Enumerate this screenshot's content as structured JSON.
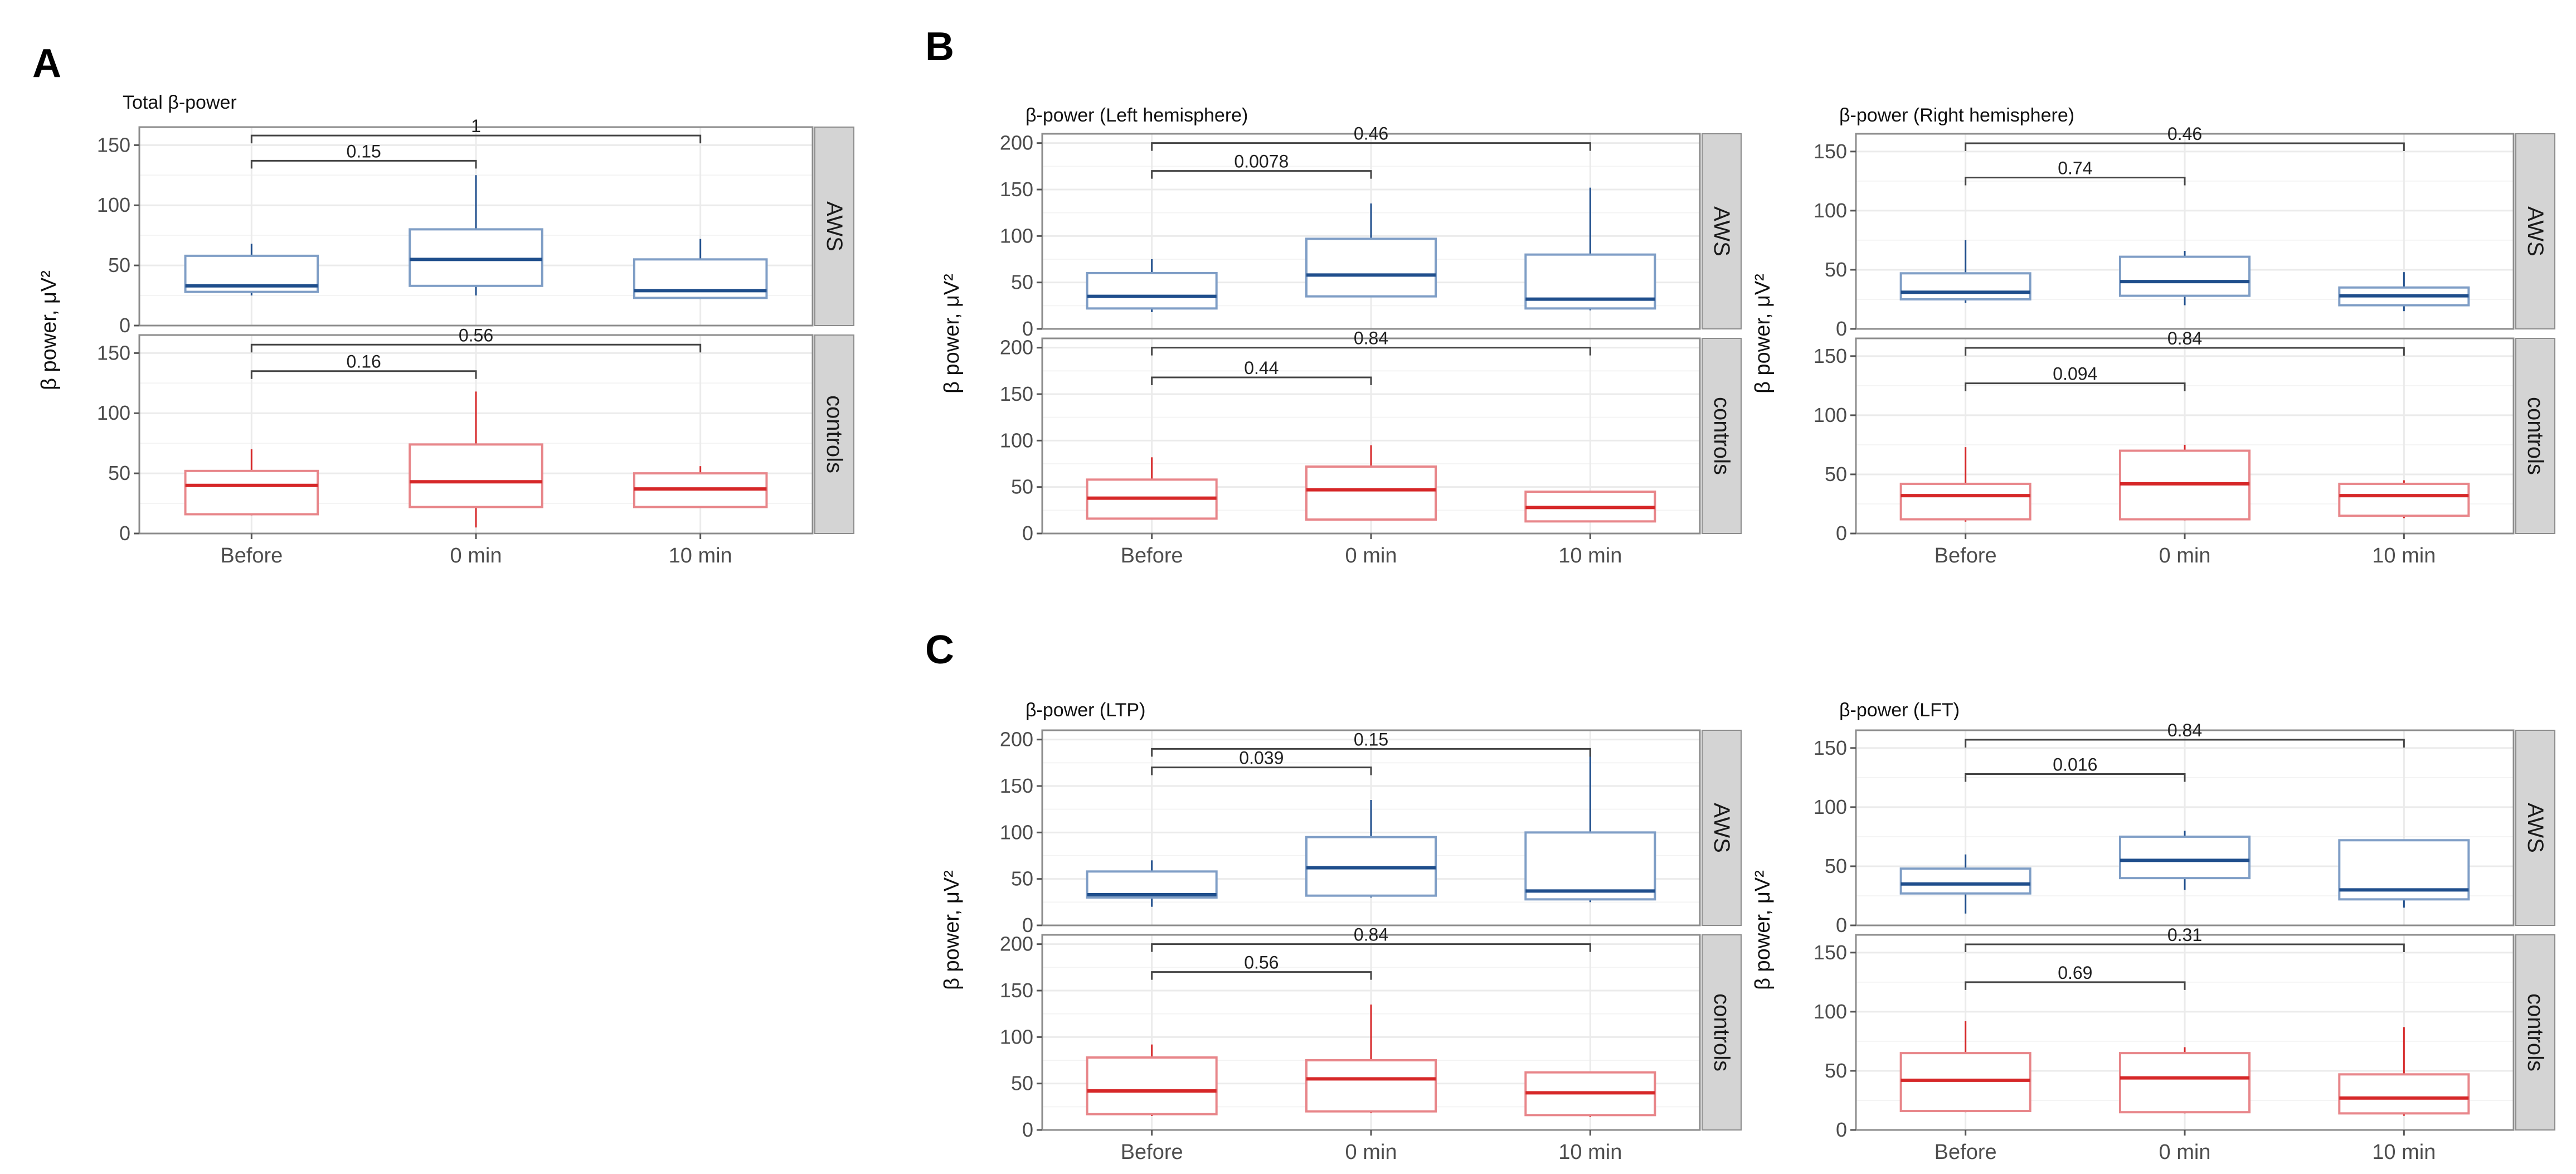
{
  "colors": {
    "aws": "#1f4e8c",
    "aws_light": "#7f9ec6",
    "controls": "#d62728",
    "controls_light": "#e8868a",
    "grid": "#ebebeb",
    "strip": "#d4d4d4",
    "bracket": "#444444"
  },
  "panels": [
    {
      "letter": "A",
      "title": "Total β-power",
      "ylabel": "β power, μV²"
    },
    {
      "letter": "B",
      "title": "β-power (Left hemisphere)",
      "ylabel": "β power, μV²"
    },
    {
      "letter": "",
      "title": "β-power (Right hemisphere)",
      "ylabel": "β power, μV²"
    },
    {
      "letter": "C",
      "title": "β-power (LTP)",
      "ylabel": "β power, μV²"
    },
    {
      "letter": "",
      "title": "β-power (LFT)",
      "ylabel": "β power, μV²"
    }
  ],
  "chart_data": [
    {
      "type": "box",
      "title": "Total β-power",
      "ylabel": "β power, μV²",
      "categories": [
        "Before",
        "0 min",
        "10 min"
      ],
      "ylim": [
        0,
        165
      ],
      "yticks": [
        0,
        50,
        100,
        150
      ],
      "facets": [
        {
          "name": "AWS",
          "group": "aws",
          "boxes": [
            {
              "min": 25,
              "q1": 28,
              "median": 33,
              "q3": 58,
              "max": 68
            },
            {
              "min": 25,
              "q1": 33,
              "median": 55,
              "q3": 80,
              "max": 125
            },
            {
              "min": 22,
              "q1": 23,
              "median": 29,
              "q3": 55,
              "max": 72
            }
          ],
          "brackets": [
            {
              "from": 0,
              "to": 1,
              "y": 137,
              "label": "0.15"
            },
            {
              "from": 0,
              "to": 2,
              "y": 158,
              "label": "1"
            }
          ]
        },
        {
          "name": "controls",
          "group": "controls",
          "boxes": [
            {
              "min": 15,
              "q1": 16,
              "median": 40,
              "q3": 52,
              "max": 70
            },
            {
              "min": 5,
              "q1": 22,
              "median": 43,
              "q3": 74,
              "max": 118
            },
            {
              "min": 22,
              "q1": 22,
              "median": 37,
              "q3": 50,
              "max": 56
            }
          ],
          "brackets": [
            {
              "from": 0,
              "to": 1,
              "y": 135,
              "label": "0.16"
            },
            {
              "from": 0,
              "to": 2,
              "y": 157,
              "label": "0.56"
            }
          ]
        }
      ]
    },
    {
      "type": "box",
      "title": "β-power (Left hemisphere)",
      "ylabel": "β power, μV²",
      "categories": [
        "Before",
        "0 min",
        "10 min"
      ],
      "ylim": [
        0,
        210
      ],
      "yticks": [
        0,
        50,
        100,
        150,
        200
      ],
      "facets": [
        {
          "name": "AWS",
          "group": "aws",
          "boxes": [
            {
              "min": 18,
              "q1": 22,
              "median": 35,
              "q3": 60,
              "max": 75
            },
            {
              "min": 35,
              "q1": 35,
              "median": 58,
              "q3": 97,
              "max": 135
            },
            {
              "min": 20,
              "q1": 22,
              "median": 32,
              "q3": 80,
              "max": 152
            }
          ],
          "brackets": [
            {
              "from": 0,
              "to": 1,
              "y": 170,
              "label": "0.0078"
            },
            {
              "from": 0,
              "to": 2,
              "y": 200,
              "label": "0.46"
            }
          ]
        },
        {
          "name": "controls",
          "group": "controls",
          "boxes": [
            {
              "min": 15,
              "q1": 16,
              "median": 38,
              "q3": 58,
              "max": 82
            },
            {
              "min": 14,
              "q1": 15,
              "median": 47,
              "q3": 72,
              "max": 95
            },
            {
              "min": 12,
              "q1": 13,
              "median": 28,
              "q3": 45,
              "max": 45
            }
          ],
          "brackets": [
            {
              "from": 0,
              "to": 1,
              "y": 168,
              "label": "0.44"
            },
            {
              "from": 0,
              "to": 2,
              "y": 200,
              "label": "0.84"
            }
          ]
        }
      ]
    },
    {
      "type": "box",
      "title": "β-power (Right hemisphere)",
      "ylabel": "β power, μV²",
      "categories": [
        "Before",
        "0 min",
        "10 min"
      ],
      "ylim": [
        0,
        165
      ],
      "yticks": [
        0,
        50,
        100,
        150
      ],
      "facets": [
        {
          "name": "AWS",
          "group": "aws",
          "boxes": [
            {
              "min": 22,
              "q1": 25,
              "median": 31,
              "q3": 47,
              "max": 75
            },
            {
              "min": 20,
              "q1": 28,
              "median": 40,
              "q3": 61,
              "max": 66
            },
            {
              "min": 15,
              "q1": 20,
              "median": 28,
              "q3": 35,
              "max": 48
            }
          ],
          "brackets": [
            {
              "from": 0,
              "to": 1,
              "y": 128,
              "label": "0.74"
            },
            {
              "from": 0,
              "to": 2,
              "y": 157,
              "label": "0.46"
            }
          ]
        },
        {
          "name": "controls",
          "group": "controls",
          "boxes": [
            {
              "min": 10,
              "q1": 12,
              "median": 32,
              "q3": 42,
              "max": 73
            },
            {
              "min": 11,
              "q1": 12,
              "median": 42,
              "q3": 70,
              "max": 75
            },
            {
              "min": 13,
              "q1": 15,
              "median": 32,
              "q3": 42,
              "max": 45
            }
          ],
          "brackets": [
            {
              "from": 0,
              "to": 1,
              "y": 127,
              "label": "0.094"
            },
            {
              "from": 0,
              "to": 2,
              "y": 157,
              "label": "0.84"
            }
          ]
        }
      ]
    },
    {
      "type": "box",
      "title": "β-power (LTP)",
      "ylabel": "β power, μV²",
      "categories": [
        "Before",
        "0 min",
        "10 min"
      ],
      "ylim": [
        0,
        210
      ],
      "yticks": [
        0,
        50,
        100,
        150,
        200
      ],
      "facets": [
        {
          "name": "AWS",
          "group": "aws",
          "boxes": [
            {
              "min": 20,
              "q1": 30,
              "median": 33,
              "q3": 58,
              "max": 70
            },
            {
              "min": 30,
              "q1": 32,
              "median": 62,
              "q3": 95,
              "max": 135
            },
            {
              "min": 25,
              "q1": 28,
              "median": 37,
              "q3": 100,
              "max": 190
            }
          ],
          "brackets": [
            {
              "from": 0,
              "to": 1,
              "y": 170,
              "label": "0.039"
            },
            {
              "from": 0,
              "to": 2,
              "y": 190,
              "label": "0.15"
            }
          ]
        },
        {
          "name": "controls",
          "group": "controls",
          "boxes": [
            {
              "min": 15,
              "q1": 17,
              "median": 42,
              "q3": 78,
              "max": 92
            },
            {
              "min": 18,
              "q1": 20,
              "median": 55,
              "q3": 75,
              "max": 135
            },
            {
              "min": 14,
              "q1": 16,
              "median": 40,
              "q3": 62,
              "max": 62
            }
          ],
          "brackets": [
            {
              "from": 0,
              "to": 1,
              "y": 170,
              "label": "0.56"
            },
            {
              "from": 0,
              "to": 2,
              "y": 200,
              "label": "0.84"
            }
          ]
        }
      ]
    },
    {
      "type": "box",
      "title": "β-power (LFT)",
      "ylabel": "β power, μV²",
      "categories": [
        "Before",
        "0 min",
        "10 min"
      ],
      "ylim": [
        0,
        165
      ],
      "yticks": [
        0,
        50,
        100,
        150
      ],
      "facets": [
        {
          "name": "AWS",
          "group": "aws",
          "boxes": [
            {
              "min": 10,
              "q1": 27,
              "median": 35,
              "q3": 48,
              "max": 60
            },
            {
              "min": 30,
              "q1": 40,
              "median": 55,
              "q3": 75,
              "max": 80
            },
            {
              "min": 15,
              "q1": 22,
              "median": 30,
              "q3": 72,
              "max": 72
            }
          ],
          "brackets": [
            {
              "from": 0,
              "to": 1,
              "y": 128,
              "label": "0.016"
            },
            {
              "from": 0,
              "to": 2,
              "y": 157,
              "label": "0.84"
            }
          ]
        },
        {
          "name": "controls",
          "group": "controls",
          "boxes": [
            {
              "min": 15,
              "q1": 16,
              "median": 42,
              "q3": 65,
              "max": 92
            },
            {
              "min": 14,
              "q1": 15,
              "median": 44,
              "q3": 65,
              "max": 70
            },
            {
              "min": 12,
              "q1": 14,
              "median": 27,
              "q3": 47,
              "max": 87
            }
          ],
          "brackets": [
            {
              "from": 0,
              "to": 1,
              "y": 125,
              "label": "0.69"
            },
            {
              "from": 0,
              "to": 2,
              "y": 157,
              "label": "0.31"
            }
          ]
        }
      ]
    }
  ]
}
